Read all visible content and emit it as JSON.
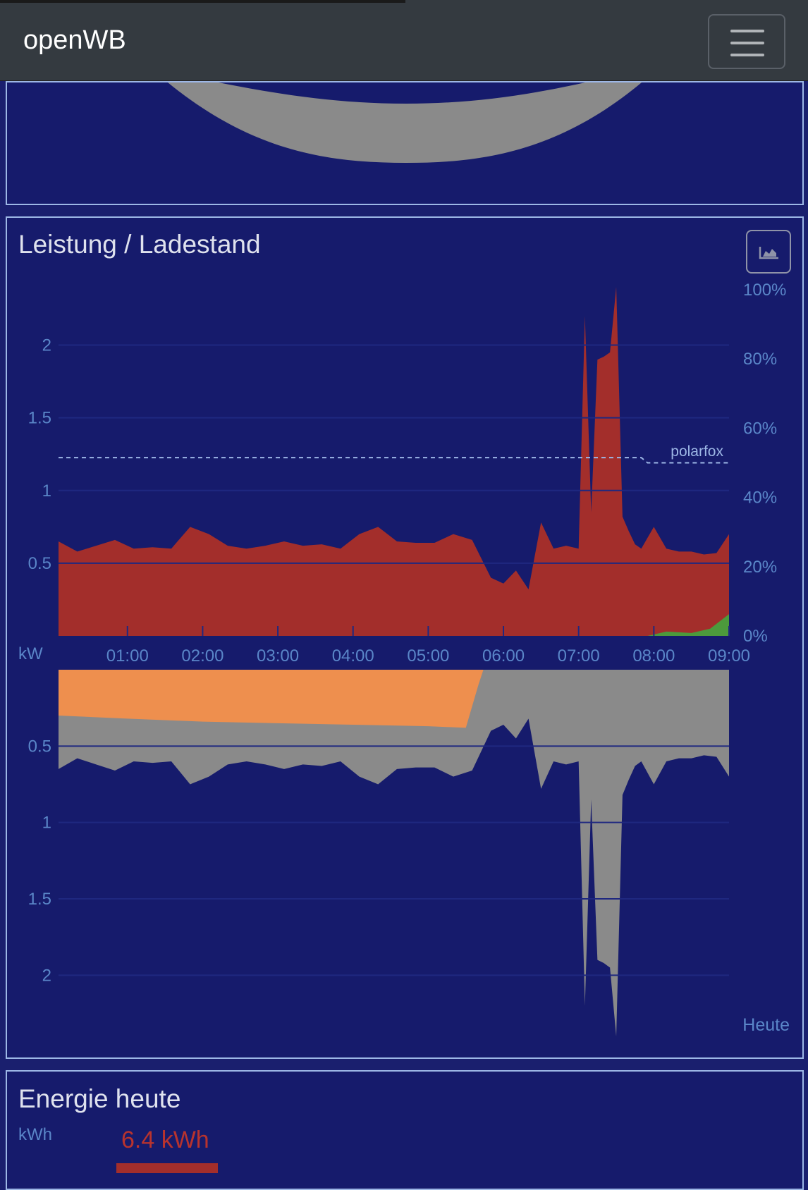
{
  "navbar": {
    "brand": "openWB",
    "menu_icon": "hamburger-icon"
  },
  "power_card": {
    "title": "Leistung / Ladestand",
    "chart_button_icon": "area-chart-icon",
    "period_label": "Heute"
  },
  "energy_card": {
    "title": "Energie heute",
    "unit_label": "kWh",
    "value_label": "6.4 kWh"
  },
  "colors": {
    "background": "#161b6c",
    "consumption": "#a32e2b",
    "pv": "#4c9a3c",
    "house": "#8a8a8a",
    "battery_charge": "#ee8f4e",
    "grid_line": "#1f2880",
    "axis_text": "#5a86c8"
  },
  "chart_data": [
    {
      "type": "area",
      "y_unit_label": "kW",
      "ylim": [
        0,
        2.4
      ],
      "yticks": [
        "0.5",
        "1",
        "1.5",
        "2"
      ],
      "y2_ticks": [
        "0%",
        "20%",
        "40%",
        "60%",
        "80%",
        "100%"
      ],
      "xticks": [
        "01:00",
        "02:00",
        "03:00",
        "04:00",
        "05:00",
        "06:00",
        "07:00",
        "08:00",
        "09:00"
      ],
      "x_start": "00:05",
      "x_end": "09:00",
      "series": [
        {
          "id": "consumption",
          "times": [
            "00:05",
            "00:20",
            "00:35",
            "00:50",
            "01:05",
            "01:20",
            "01:35",
            "01:50",
            "02:05",
            "02:20",
            "02:35",
            "02:50",
            "03:05",
            "03:20",
            "03:35",
            "03:50",
            "04:05",
            "04:20",
            "04:35",
            "04:50",
            "05:05",
            "05:20",
            "05:35",
            "05:50",
            "06:00",
            "06:10",
            "06:20",
            "06:30",
            "06:40",
            "06:50",
            "07:00",
            "07:05",
            "07:10",
            "07:15",
            "07:20",
            "07:25",
            "07:30",
            "07:35",
            "07:40",
            "07:45",
            "07:50",
            "08:00",
            "08:10",
            "08:20",
            "08:30",
            "08:40",
            "08:50",
            "09:00"
          ],
          "values": [
            0.65,
            0.58,
            0.62,
            0.66,
            0.6,
            0.61,
            0.6,
            0.75,
            0.7,
            0.62,
            0.6,
            0.62,
            0.65,
            0.62,
            0.63,
            0.6,
            0.7,
            0.75,
            0.65,
            0.64,
            0.64,
            0.7,
            0.66,
            0.4,
            0.36,
            0.45,
            0.32,
            0.78,
            0.6,
            0.62,
            0.6,
            2.2,
            0.85,
            1.9,
            1.92,
            1.95,
            2.4,
            0.82,
            0.72,
            0.63,
            0.6,
            0.75,
            0.6,
            0.58,
            0.58,
            0.56,
            0.57,
            0.7
          ]
        },
        {
          "id": "pv",
          "times": [
            "07:55",
            "08:10",
            "08:30",
            "08:45",
            "09:00"
          ],
          "values": [
            0.0,
            0.03,
            0.02,
            0.05,
            0.15
          ]
        },
        {
          "id": "soc_polarfox",
          "label": "polarfox",
          "style": "dashed",
          "unit": "%",
          "times": [
            "00:05",
            "07:50",
            "07:55",
            "09:00"
          ],
          "values": [
            51.5,
            51.5,
            50,
            50
          ]
        }
      ]
    },
    {
      "type": "area",
      "ylim": [
        0,
        2.4
      ],
      "inverted": true,
      "yticks": [
        "0.5",
        "1",
        "1.5",
        "2"
      ],
      "x_start": "00:05",
      "x_end": "09:00",
      "series": [
        {
          "id": "house",
          "times": [
            "00:05",
            "00:20",
            "00:35",
            "00:50",
            "01:05",
            "01:20",
            "01:35",
            "01:50",
            "02:05",
            "02:20",
            "02:35",
            "02:50",
            "03:05",
            "03:20",
            "03:35",
            "03:50",
            "04:05",
            "04:20",
            "04:35",
            "04:50",
            "05:05",
            "05:20",
            "05:35",
            "05:50",
            "06:00",
            "06:10",
            "06:20",
            "06:30",
            "06:40",
            "06:50",
            "07:00",
            "07:05",
            "07:10",
            "07:15",
            "07:20",
            "07:25",
            "07:30",
            "07:35",
            "07:40",
            "07:45",
            "07:50",
            "08:00",
            "08:10",
            "08:20",
            "08:30",
            "08:40",
            "08:50",
            "09:00"
          ],
          "values": [
            0.65,
            0.58,
            0.62,
            0.66,
            0.6,
            0.61,
            0.6,
            0.75,
            0.7,
            0.62,
            0.6,
            0.62,
            0.65,
            0.62,
            0.63,
            0.6,
            0.7,
            0.75,
            0.65,
            0.64,
            0.64,
            0.7,
            0.66,
            0.4,
            0.36,
            0.45,
            0.32,
            0.78,
            0.6,
            0.62,
            0.6,
            2.2,
            0.85,
            1.9,
            1.92,
            1.95,
            2.4,
            0.82,
            0.72,
            0.63,
            0.6,
            0.75,
            0.6,
            0.58,
            0.58,
            0.56,
            0.57,
            0.7
          ]
        },
        {
          "id": "battery_charge",
          "times": [
            "00:05",
            "01:00",
            "02:00",
            "03:00",
            "04:00",
            "05:00",
            "05:30",
            "05:40",
            "05:44"
          ],
          "values": [
            0.3,
            0.32,
            0.34,
            0.35,
            0.36,
            0.37,
            0.38,
            0.1,
            0.0
          ]
        }
      ]
    }
  ]
}
